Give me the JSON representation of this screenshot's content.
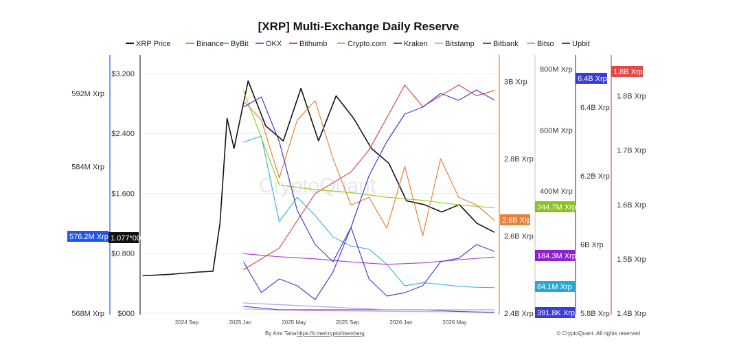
{
  "chart_data": {
    "type": "line",
    "title": "[XRP] Multi-Exchange Daily Reserve",
    "footer": {
      "author": "By Amr Taha",
      "link": "https://t.me/cryptohisenberg",
      "copyright": "© CryptoQuant. All rights reserved"
    },
    "watermark": "CryptoQuant",
    "legend": [
      {
        "name": "XRP Price",
        "color": "#111111"
      },
      {
        "name": "Binance",
        "color": "#e8823a"
      },
      {
        "name": "ByBit",
        "color": "#3fb7d8"
      },
      {
        "name": "OKX",
        "color": "#b23fd6"
      },
      {
        "name": "Bithumb",
        "color": "#e04a4a"
      },
      {
        "name": "Crypto.com",
        "color": "#9acc2a"
      },
      {
        "name": "Kraken",
        "color": "#4a3fd6"
      },
      {
        "name": "Bitstamp",
        "color": "#f2a7a7"
      },
      {
        "name": "Bitbank",
        "color": "#5b4fe0"
      },
      {
        "name": "Bitso",
        "color": "#a9a2f0"
      },
      {
        "name": "Upbit",
        "color": "#3b3bd6"
      }
    ],
    "x_ticks": [
      "2024 Sep",
      "2025 Jan",
      "2025 May",
      "2025 Sep",
      "2026 Jan",
      "2026 May"
    ],
    "axes": {
      "left_outer": {
        "ticks": [
          "592M Xrp",
          "584M Xrp",
          "568M Xrp"
        ],
        "values": [
          592,
          584,
          568
        ],
        "range": [
          568,
          595
        ],
        "color": "#2255ee",
        "badge": "576.2M Xrp"
      },
      "left_price": {
        "ticks": [
          "$3.200",
          "$2.400",
          "$1.600",
          "$0.800",
          "$000"
        ],
        "values": [
          3.2,
          2.4,
          1.6,
          0.8,
          0
        ],
        "range": [
          0,
          3.3
        ],
        "badge": "1.077*00"
      },
      "right_1": {
        "ticks": [
          "3B Xrp",
          "2.8B Xrp",
          "2.6B Xrp",
          "2.4B Xrp"
        ],
        "values": [
          3.0,
          2.8,
          2.6,
          2.4
        ],
        "range": [
          2.4,
          3.04
        ],
        "color": "#e8823a",
        "badge": "2.6B Xrp"
      },
      "right_2": {
        "ticks": [
          "800M Xrp",
          "600M Xrp",
          "400M Xrp"
        ],
        "values": [
          800,
          600,
          400
        ],
        "range": [
          0,
          810
        ],
        "badges": [
          "344.7M Xrp",
          "184.3M Xrp",
          "84.1M Xrp"
        ],
        "badge_colors": [
          "#8cbf1f",
          "#8e1fcf",
          "#29a8d8"
        ]
      },
      "right_3": {
        "ticks": [
          "6.4B Xrp",
          "6.2B Xrp",
          "6B Xrp",
          "5.8B Xrp"
        ],
        "values": [
          6.4,
          6.2,
          6.0,
          5.8
        ],
        "range": [
          5.8,
          6.52
        ],
        "color": "#3b3bd6",
        "badges": [
          "6.4B Xrp",
          "391.8K Xrp"
        ]
      },
      "right_4": {
        "ticks": [
          "1.8B Xrp",
          "1.7B Xrp",
          "1.6B Xrp",
          "1.5B Xrp",
          "1.4B Xrp"
        ],
        "values": [
          1.8,
          1.7,
          1.6,
          1.5,
          1.4
        ],
        "range": [
          1.4,
          1.855
        ],
        "color": "#e04a4a",
        "badge": "1.8B Xrp"
      }
    },
    "series": [
      {
        "name": "XRP Price",
        "x": [
          0,
          0.08,
          0.16,
          0.2,
          0.22,
          0.24,
          0.26,
          0.3,
          0.35,
          0.4,
          0.45,
          0.5,
          0.55,
          0.6,
          0.65,
          0.7,
          0.75,
          0.8,
          0.85,
          0.9,
          0.95,
          1.0
        ],
        "values": [
          0.5,
          0.52,
          0.55,
          0.56,
          1.2,
          2.6,
          2.2,
          3.1,
          2.5,
          2.3,
          3.0,
          2.3,
          2.9,
          2.6,
          2.2,
          2.0,
          1.5,
          1.45,
          1.35,
          1.45,
          1.2,
          1.08
        ]
      },
      {
        "name": "Binance",
        "x": [
          0.3,
          0.35,
          0.4,
          0.45,
          0.5,
          0.55,
          0.6,
          0.65,
          0.7,
          0.75,
          0.8,
          0.85,
          0.9,
          0.95,
          1.0
        ],
        "values": [
          2.95,
          2.9,
          2.75,
          2.9,
          2.95,
          2.8,
          2.68,
          2.7,
          2.62,
          2.78,
          2.6,
          2.8,
          2.7,
          2.68,
          2.64
        ]
      },
      {
        "name": "ByBit",
        "x": [
          0.3,
          0.35,
          0.4,
          0.45,
          0.5,
          0.55,
          0.6,
          0.65,
          0.7,
          0.75,
          0.8,
          0.85,
          0.9,
          0.95,
          1.0
        ],
        "values": [
          560,
          580,
          300,
          380,
          320,
          250,
          220,
          210,
          160,
          90,
          100,
          95,
          88,
          85,
          84
        ]
      },
      {
        "name": "OKX",
        "x": [
          0.3,
          0.4,
          0.5,
          0.6,
          0.7,
          0.8,
          0.9,
          1.0
        ],
        "values": [
          195,
          185,
          178,
          168,
          160,
          165,
          175,
          184
        ]
      },
      {
        "name": "Bithumb",
        "x": [
          0.3,
          0.4,
          0.5,
          0.6,
          0.65,
          0.7,
          0.75,
          0.8,
          0.85,
          0.9,
          0.95,
          1.0
        ],
        "values": [
          1.48,
          1.52,
          1.62,
          1.66,
          1.7,
          1.76,
          1.82,
          1.78,
          1.8,
          1.82,
          1.8,
          1.81
        ]
      },
      {
        "name": "Crypto.com",
        "x": [
          0.3,
          0.4,
          0.5,
          0.6,
          0.7,
          0.8,
          0.9,
          1.0
        ],
        "values": [
          730,
          420,
          405,
          395,
          380,
          370,
          355,
          345
        ]
      },
      {
        "name": "Kraken",
        "x": [
          0.3,
          0.35,
          0.4,
          0.45,
          0.5,
          0.55,
          0.6,
          0.65,
          0.7,
          0.75,
          0.8,
          0.85,
          0.9,
          0.95,
          1.0
        ],
        "values": [
          5.95,
          5.86,
          5.9,
          5.88,
          5.84,
          5.92,
          6.05,
          5.9,
          5.85,
          5.86,
          5.88,
          5.95,
          5.96,
          6.0,
          5.98
        ]
      },
      {
        "name": "Bitstamp",
        "x": [
          0.3,
          0.5,
          0.7,
          1.0
        ],
        "values": [
          14,
          8,
          6,
          4
        ]
      },
      {
        "name": "Bitbank",
        "x": [
          0.3,
          0.4,
          0.5,
          0.6,
          0.7,
          0.8,
          0.9,
          1.0
        ],
        "values": [
          5.82,
          5.81,
          5.81,
          5.81,
          5.81,
          5.81,
          5.805,
          5.802
        ]
      },
      {
        "name": "Bitso",
        "x": [
          0.3,
          0.5,
          0.7,
          1.0
        ],
        "values": [
          5.83,
          5.82,
          5.81,
          5.81
        ]
      },
      {
        "name": "Upbit",
        "x": [
          0.3,
          0.35,
          0.4,
          0.45,
          0.5,
          0.55,
          0.6,
          0.65,
          0.7,
          0.75,
          0.8,
          0.85,
          0.9,
          0.95,
          1.0
        ],
        "values": [
          6.4,
          6.43,
          6.3,
          6.1,
          6.0,
          5.95,
          6.05,
          6.2,
          6.3,
          6.38,
          6.4,
          6.44,
          6.42,
          6.45,
          6.42
        ]
      }
    ]
  }
}
